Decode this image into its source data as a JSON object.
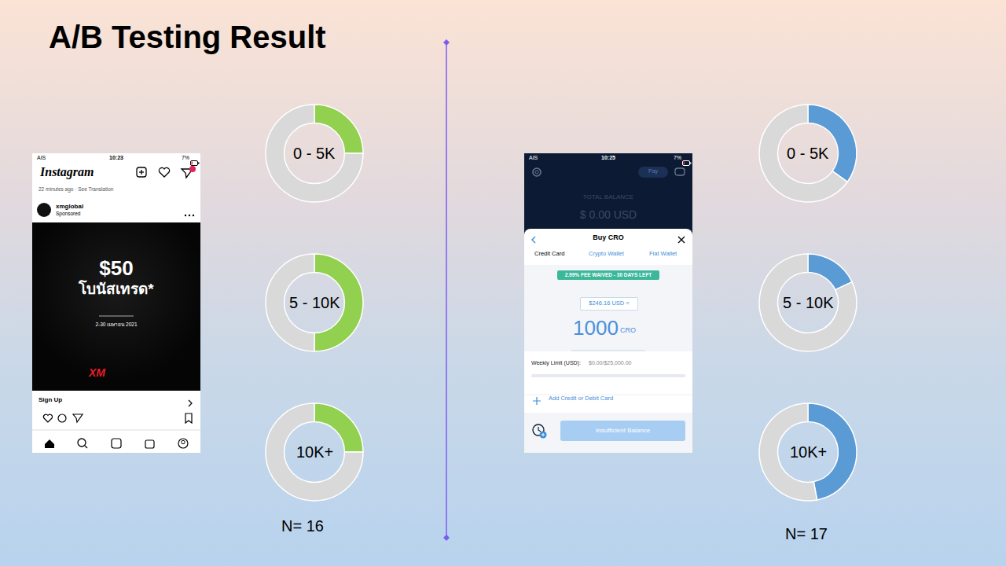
{
  "title": "A/B Testing Result",
  "chart_data": [
    {
      "type": "pie",
      "title": "0 - 5K",
      "values": [
        25,
        75
      ],
      "colors": [
        "#92d050",
        "#d9d9d9"
      ]
    },
    {
      "type": "pie",
      "title": "5 - 10K",
      "values": [
        50,
        50
      ],
      "colors": [
        "#92d050",
        "#d9d9d9"
      ]
    },
    {
      "type": "pie",
      "title": "10K+",
      "values": [
        25,
        75
      ],
      "colors": [
        "#92d050",
        "#d9d9d9"
      ]
    },
    {
      "type": "pie",
      "title": "0 - 5K",
      "values": [
        35,
        65
      ],
      "colors": [
        "#5b9bd5",
        "#d9d9d9"
      ]
    },
    {
      "type": "pie",
      "title": "5 - 10K",
      "values": [
        18,
        82
      ],
      "colors": [
        "#5b9bd5",
        "#d9d9d9"
      ]
    },
    {
      "type": "pie",
      "title": "10K+",
      "values": [
        47,
        53
      ],
      "colors": [
        "#5b9bd5",
        "#d9d9d9"
      ]
    }
  ],
  "groups": [
    {
      "n_label": "N= 16",
      "screenshot": {
        "carrier": "AIS",
        "time": "10:23",
        "battery": "7%",
        "app_name": "Instagram",
        "post_meta": "22 minutes ago · See Translation",
        "account": "xmglobal",
        "sponsored": "Sponsored",
        "ad_headline": "$50",
        "ad_subheadline": "โบนัสเทรด*",
        "ad_date": "2-30 เมษายน 2021",
        "ad_brand": "XM",
        "cta": "Sign Up"
      }
    },
    {
      "n_label": "N= 17",
      "screenshot": {
        "carrier": "AIS",
        "time": "10:25",
        "battery": "7%",
        "pay_button": "Pay",
        "balance_label": "TOTAL BALANCE",
        "balance": "$ 0.00 USD",
        "sheet_title": "Buy CRO",
        "tabs": [
          "Credit Card",
          "Crypto Wallet",
          "Fiat Wallet"
        ],
        "fee_banner": "2.99% FEE WAIVED - 30 DAYS LEFT",
        "usd_amount": "$246.16 USD =",
        "cro_amount": "1000",
        "cro_unit": "CRO",
        "limit_label": "Weekly Limit (USD):",
        "limit_value": "$0.00/$25,000.00",
        "add_card": "Add Credit or Debit Card",
        "button": "Insufficient Balance"
      }
    }
  ]
}
